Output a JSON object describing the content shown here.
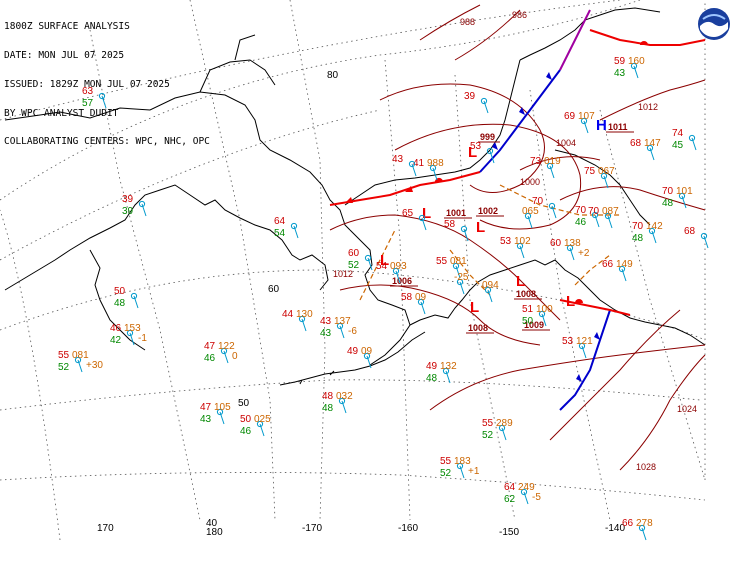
{
  "header": {
    "line1": "1800Z SURFACE ANALYSIS",
    "line2": "DATE: MON JUL 07 2025",
    "line3": "ISSUED: 1829Z MON JUL 07 2025",
    "line4": "BY WPC ANALYST DUDIT",
    "line5": "COLLABORATING CENTERS: WPC, NHC, OPC"
  },
  "logo": {
    "name": "noaa-logo"
  },
  "graticule": {
    "lat_labels": [
      "80",
      "60",
      "50",
      "40"
    ],
    "lon_labels": [
      "170",
      "180",
      "-170",
      "-160",
      "-150",
      "-140"
    ]
  },
  "colors": {
    "temperature": "#cc0000",
    "dewpoint": "#008800",
    "pressure": "#cc6600",
    "isobar": "#8b0000",
    "cold_front": "#0000cc",
    "warm_front": "#ee0000",
    "occluded_front": "#a000a0",
    "trough": "#cc6600",
    "station": "#0099cc",
    "coast": "#000000",
    "grid": "#444444"
  },
  "lows": [
    {
      "symbol": "L",
      "value": "1001"
    },
    {
      "symbol": "L",
      "value": "1002"
    },
    {
      "symbol": "L",
      "value": "1006"
    },
    {
      "symbol": "L",
      "value": "1008"
    },
    {
      "symbol": "L",
      "value": "1008"
    },
    {
      "symbol": "L",
      "value": "1009"
    },
    {
      "symbol": "L",
      "value": "999"
    }
  ],
  "highs": [
    {
      "symbol": "H",
      "value": "1011"
    }
  ],
  "isobar_labels": [
    "1004",
    "1000",
    "1012",
    "1012",
    "1024",
    "1028",
    "988",
    "986"
  ],
  "stations": [
    {
      "t": "63",
      "d": "57",
      "p": ""
    },
    {
      "t": "39",
      "d": "39",
      "p": ""
    },
    {
      "t": "64",
      "d": "54",
      "p": ""
    },
    {
      "t": "50",
      "d": "48",
      "p": ""
    },
    {
      "t": "46",
      "d": "42",
      "p": "153",
      "tend": "-1"
    },
    {
      "t": "55",
      "d": "52",
      "p": "081",
      "tend": "+30"
    },
    {
      "t": "47",
      "d": "46",
      "p": "122",
      "tend": "0"
    },
    {
      "t": "44",
      "d": "",
      "p": "130"
    },
    {
      "t": "43",
      "d": "43",
      "p": "137",
      "tend": "-6"
    },
    {
      "t": "47",
      "d": "43",
      "p": "105"
    },
    {
      "t": "50",
      "d": "46",
      "p": "025"
    },
    {
      "t": "48",
      "d": "48",
      "p": "032"
    },
    {
      "t": "49",
      "d": "",
      "p": "09"
    },
    {
      "t": "49",
      "d": "48",
      "p": "132"
    },
    {
      "t": "55",
      "d": "52",
      "p": "289"
    },
    {
      "t": "55",
      "d": "52",
      "p": "183",
      "tend": "+1"
    },
    {
      "t": "64",
      "d": "62",
      "p": "249",
      "tend": "-5"
    },
    {
      "t": "66",
      "d": "",
      "p": "278"
    },
    {
      "t": "53",
      "d": "",
      "p": "121"
    },
    {
      "t": "51",
      "d": "50",
      "p": "100"
    },
    {
      "t": "55",
      "d": "",
      "p": "081"
    },
    {
      "t": "58",
      "d": "",
      "p": "09"
    },
    {
      "t": "54",
      "d": "",
      "p": "093"
    },
    {
      "t": "",
      "d": "",
      "p": "094"
    },
    {
      "t": "60",
      "d": "52",
      "p": ""
    },
    {
      "t": "65",
      "d": "",
      "p": ""
    },
    {
      "t": "58",
      "d": "",
      "p": ""
    },
    {
      "t": "53",
      "d": "",
      "p": "102"
    },
    {
      "t": "60",
      "d": "",
      "p": "138",
      "tend": "+2"
    },
    {
      "t": "66",
      "d": "",
      "p": "149"
    },
    {
      "t": "70",
      "d": "46",
      "p": ""
    },
    {
      "t": "70",
      "d": "",
      "p": "087"
    },
    {
      "t": "70",
      "d": "",
      "p": ""
    },
    {
      "t": "75",
      "d": "",
      "p": "067"
    },
    {
      "t": "73",
      "d": "",
      "p": "019"
    },
    {
      "t": "59",
      "d": "43",
      "p": "160"
    },
    {
      "t": "69",
      "d": "",
      "p": "107"
    },
    {
      "t": "68",
      "d": "",
      "p": "147"
    },
    {
      "t": "70",
      "d": "48",
      "p": "142"
    },
    {
      "t": "70",
      "d": "48",
      "p": "101"
    },
    {
      "t": "74",
      "d": "45",
      "p": ""
    },
    {
      "t": "68",
      "d": "",
      "p": ""
    },
    {
      "t": "41",
      "d": "",
      "p": "988"
    },
    {
      "t": "53",
      "d": "",
      "p": ""
    },
    {
      "t": "39",
      "d": "",
      "p": ""
    },
    {
      "t": "",
      "d": "",
      "p": "065"
    },
    {
      "t": "43",
      "d": "",
      "p": ""
    },
    {
      "t": "",
      "d": "",
      "p": "-25"
    }
  ]
}
